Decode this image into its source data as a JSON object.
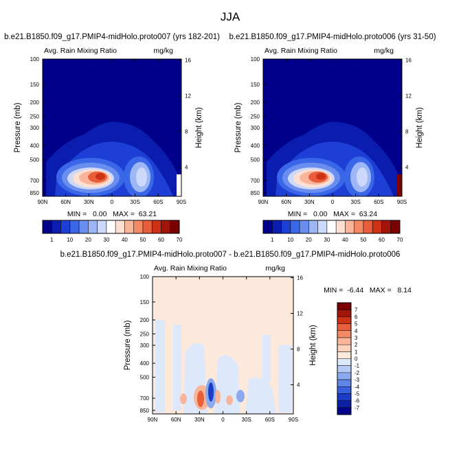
{
  "page_title": "JJA",
  "chart_data": [
    {
      "type": "heatmap",
      "title": "b.e21.B1850.f09_g17.PMIP4-midHolo.proto007 (yrs 182-201)",
      "subtitle_left": "Avg. Rain Mixing Ratio",
      "subtitle_right": "mg/kg",
      "ylabel": "Pressure (mb)",
      "ylabel_right": "Height (km)",
      "xticks": [
        "90N",
        "60N",
        "30N",
        "0",
        "30S",
        "60S",
        "90S"
      ],
      "yticks": [
        "100",
        "150",
        "200",
        "250",
        "300",
        "400",
        "500",
        "700",
        "850"
      ],
      "yticks_right": [
        "16",
        "12",
        "8",
        "4"
      ],
      "min_max": "MIN =   0.00   MAX =  63.21",
      "colorbar_labels": [
        "1",
        "10",
        "20",
        "30",
        "40",
        "50",
        "60",
        "70"
      ],
      "max_value": 63.21
    },
    {
      "type": "heatmap",
      "title": "b.e21.B1850.f09_g17.PMIP4-midHolo.proto006 (yrs 31-50)",
      "subtitle_left": "Avg. Rain Mixing Ratio",
      "subtitle_right": "mg/kg",
      "ylabel": "Pressure (mb)",
      "ylabel_right": "Height (km)",
      "xticks": [
        "90N",
        "60N",
        "30N",
        "0",
        "30S",
        "60S",
        "90S"
      ],
      "yticks": [
        "100",
        "150",
        "200",
        "250",
        "300",
        "400",
        "500",
        "700",
        "850"
      ],
      "yticks_right": [
        "16",
        "12",
        "8",
        "4"
      ],
      "min_max": "MIN =   0.00   MAX =  63.24",
      "colorbar_labels": [
        "1",
        "10",
        "20",
        "30",
        "40",
        "50",
        "60",
        "70"
      ],
      "max_value": 63.24
    },
    {
      "type": "heatmap",
      "title": "b.e21.B1850.f09_g17.PMIP4-midHolo.proto007 - b.e21.B1850.f09_g17.PMIP4-midHolo.proto006",
      "subtitle_left": "Avg. Rain Mixing Ratio",
      "subtitle_right": "mg/kg",
      "ylabel": "Pressure (mb)",
      "ylabel_right": "Height (km)",
      "xticks": [
        "90N",
        "60N",
        "30N",
        "0",
        "30S",
        "60S",
        "90S"
      ],
      "yticks": [
        "100",
        "150",
        "200",
        "250",
        "300",
        "400",
        "500",
        "700",
        "850"
      ],
      "yticks_right": [
        "16",
        "12",
        "8",
        "4"
      ],
      "min_max": "MIN =  -6.44   MAX =   8.14",
      "colorbar_labels": [
        "7",
        "6",
        "5",
        "4",
        "3",
        "2",
        "1",
        "0",
        "-1",
        "-2",
        "-3",
        "-4",
        "-5",
        "-6",
        "-7"
      ],
      "min_value": -6.44,
      "max_value": 8.14
    }
  ],
  "colors": {
    "abs_scale": [
      "#00008b",
      "#0b1dae",
      "#1e3fd6",
      "#3a66e8",
      "#6a8ef0",
      "#9db6f5",
      "#cdd9fa",
      "#ffffff",
      "#fde0d2",
      "#f9b59a",
      "#f38a66",
      "#e85d3a",
      "#cc3213",
      "#a3140a",
      "#7a0000"
    ],
    "diff_scale": [
      "#7a0000",
      "#a3140a",
      "#cc3213",
      "#e85d3a",
      "#f38a66",
      "#f9b59a",
      "#fcd2bd",
      "#fde9dc",
      "#dde8fb",
      "#b5cbf6",
      "#8aa9ef",
      "#5f85e6",
      "#3860de",
      "#1a3cc9",
      "#0b1fa6",
      "#00008b"
    ]
  }
}
